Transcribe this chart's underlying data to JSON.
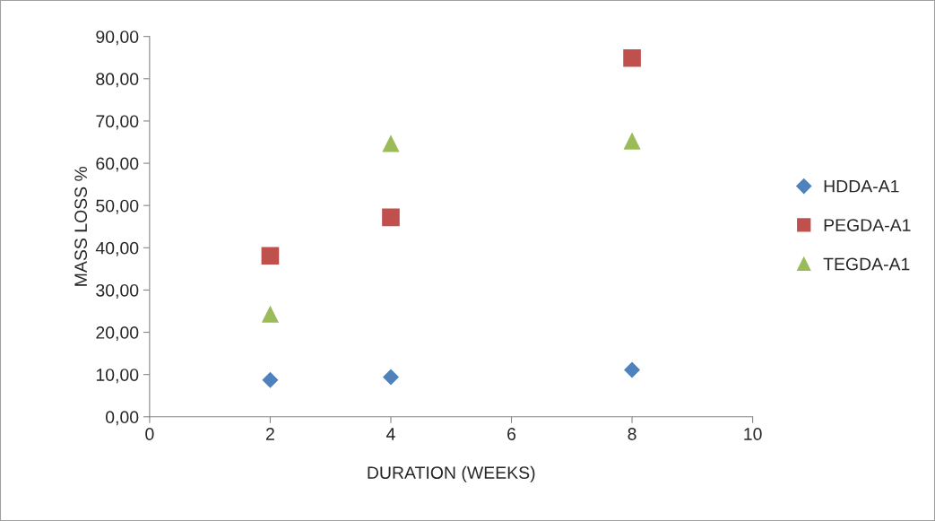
{
  "chart_data": {
    "type": "scatter",
    "xlabel": "DURATION (WEEKS)",
    "ylabel": "MASS LOSS %",
    "series": [
      {
        "name": "HDDA-A1",
        "color": "#4f81bd",
        "marker": "diamond",
        "x": [
          2,
          4,
          8
        ],
        "values": [
          8.7,
          9.4,
          11.1
        ]
      },
      {
        "name": "PEGDA-A1",
        "color": "#c0504d",
        "marker": "square",
        "x": [
          2,
          4,
          8
        ],
        "values": [
          38.1,
          47.2,
          84.9
        ]
      },
      {
        "name": "TEGDA-A1",
        "color": "#9bbb59",
        "marker": "triangle",
        "x": [
          2,
          4,
          8
        ],
        "values": [
          24.3,
          64.7,
          65.3
        ]
      }
    ],
    "xlim": [
      0,
      10
    ],
    "xticks": [
      0,
      2,
      4,
      6,
      8,
      10
    ],
    "ylim": [
      0,
      90
    ],
    "yticks": [
      {
        "value": 0,
        "label": "0,00"
      },
      {
        "value": 10,
        "label": "10,00"
      },
      {
        "value": 20,
        "label": "20,00"
      },
      {
        "value": 30,
        "label": "30,00"
      },
      {
        "value": 40,
        "label": "40,00"
      },
      {
        "value": 50,
        "label": "50,00"
      },
      {
        "value": 60,
        "label": "60,00"
      },
      {
        "value": 70,
        "label": "70,00"
      },
      {
        "value": 80,
        "label": "80,00"
      },
      {
        "value": 90,
        "label": "90,00"
      }
    ],
    "grid": false,
    "legend": "right"
  }
}
